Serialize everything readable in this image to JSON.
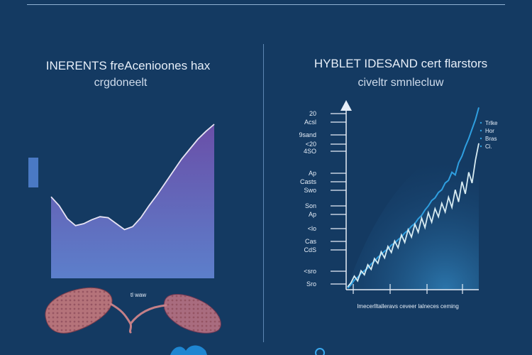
{
  "colors": {
    "background": "#143a62",
    "left_fill_top": "#6a4fa8",
    "left_fill_bottom": "#5c7fcb",
    "left_line": "#e8e4f4",
    "right_line_light": "#d8ecf2",
    "right_line_blue": "#2f9fe0",
    "axis": "#e6eef8",
    "organ_fill": "#b5737a"
  },
  "icons": [
    "organ-illustration-icon",
    "y-axis-arrow-icon",
    "bottom-blue-shape-icon"
  ],
  "chart_data": [
    {
      "type": "area",
      "title": "INERENTS freAcenioones hax",
      "subtitle": "crgdoneelt",
      "ylabel_tag": "",
      "x_caption": "tl waw",
      "x": [
        0,
        1,
        2,
        3,
        4,
        5,
        6,
        7,
        8,
        9,
        10,
        11,
        12,
        13,
        14,
        15,
        16,
        17,
        18,
        19,
        20
      ],
      "series": [
        {
          "values": [
            82,
            73,
            60,
            53,
            55,
            59,
            62,
            61,
            55,
            49,
            52,
            61,
            73,
            84,
            96,
            108,
            120,
            130,
            140,
            148,
            155
          ]
        }
      ],
      "ylim": [
        0,
        180
      ],
      "grid": false
    },
    {
      "type": "line",
      "title": "HYBLET IDESAND cert flarstors",
      "subtitle": "civeltr smnlecluw",
      "y_tick_labels": [
        "20",
        "Acsl",
        "9sand",
        "<20",
        "4SO",
        "Ap",
        "Casts",
        "Swo",
        "Son",
        "Ap",
        "<lo",
        "Cas",
        "CdS",
        "<sro",
        "Sro"
      ],
      "x_caption": "Imecerlltalleravs ceveer lalneces ceming",
      "annotation_lines": [
        "Trlke",
        "Hor",
        "Bras",
        "Ci."
      ],
      "x": [
        0,
        1,
        2,
        3,
        4,
        5,
        6,
        7,
        8,
        9,
        10,
        11,
        12,
        13,
        14,
        15,
        16,
        17,
        18,
        19,
        20,
        21,
        22,
        23,
        24,
        25,
        26,
        27,
        28,
        29,
        30,
        31,
        32,
        33,
        34,
        35,
        36,
        37,
        38,
        39
      ],
      "series": [
        {
          "values": [
            2,
            8,
            18,
            11,
            26,
            20,
            35,
            28,
            44,
            37,
            54,
            45,
            62,
            53,
            70,
            60,
            79,
            68,
            87,
            76,
            95,
            83,
            104,
            90,
            112,
            98,
            118,
            106,
            126,
            113,
            135,
            120,
            146,
            128,
            158,
            140,
            172,
            156,
            190,
            215
          ]
        },
        {
          "values": [
            0,
            5,
            12,
            16,
            22,
            26,
            30,
            36,
            40,
            46,
            50,
            55,
            58,
            64,
            67,
            72,
            76,
            82,
            86,
            92,
            96,
            103,
            108,
            116,
            122,
            130,
            134,
            142,
            146,
            156,
            160,
            172,
            168,
            186,
            196,
            210,
            222,
            236,
            250,
            268
          ]
        }
      ],
      "ylim": [
        0,
        280
      ],
      "grid": false
    }
  ]
}
